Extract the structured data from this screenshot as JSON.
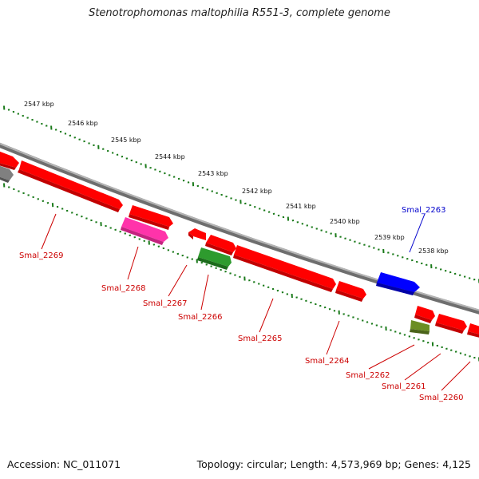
{
  "title": "Stenotrophomonas maltophilia R551-3, complete genome",
  "footer": {
    "accession": "Accession: NC_011071",
    "topology": "Topology: circular; Length: 4,573,969 bp; Genes: 4,125"
  },
  "colors": {
    "backbone": "#808080",
    "tick_major": "#1a7a1a",
    "tick_minor": "#1a7a1a",
    "label_red": "#cc0000",
    "label_blue": "#0000cc"
  },
  "scale": {
    "unit": "kbp",
    "labels": [
      "2547 kbp",
      "2546 kbp",
      "2545 kbp",
      "2544 kbp",
      "2543 kbp",
      "2542 kbp",
      "2541 kbp",
      "2540 kbp",
      "2539 kbp",
      "2538 kbp"
    ]
  },
  "genes": [
    {
      "label": "Smal_2269",
      "color": "#ff0000"
    },
    {
      "label": "Smal_2268",
      "color": "#ff3399"
    },
    {
      "label": "Smal_2267",
      "color": "#ff0000"
    },
    {
      "label": "Smal_2266",
      "color": "#228b22"
    },
    {
      "label": "Smal_2265",
      "color": "#ff0000"
    },
    {
      "label": "Smal_2264",
      "color": "#ff0000"
    },
    {
      "label": "Smal_2263",
      "color": "#0000ff"
    },
    {
      "label": "Smal_2262",
      "color": "#6b8e23"
    },
    {
      "label": "Smal_2261",
      "color": "#ff0000"
    },
    {
      "label": "Smal_2260",
      "color": "#ff0000"
    }
  ]
}
